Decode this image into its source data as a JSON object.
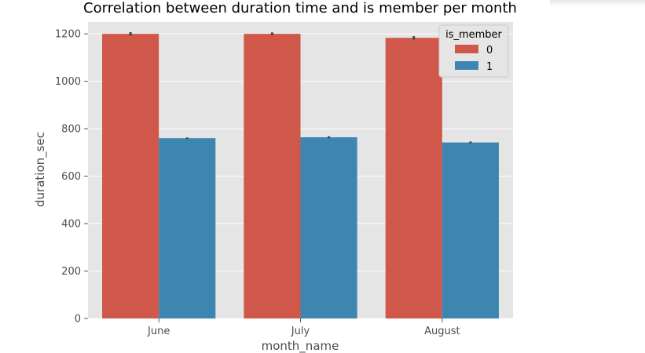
{
  "chart_data": {
    "type": "bar",
    "title": "Correlation between duration time and is member per month",
    "xlabel": "month_name",
    "ylabel": "duration_sec",
    "categories": [
      "June",
      "July",
      "August"
    ],
    "ylim": [
      0,
      1250
    ],
    "yticks": [
      0,
      200,
      400,
      600,
      800,
      1000,
      1200
    ],
    "grid": true,
    "legend": {
      "title": "is_member",
      "placement": "top-right"
    },
    "series": [
      {
        "name": "0",
        "color": "#d0584a",
        "values": [
          1200,
          1200,
          1183
        ],
        "errors": [
          7,
          6,
          7
        ]
      },
      {
        "name": "1",
        "color": "#3d86b2",
        "values": [
          760,
          764,
          742
        ],
        "errors": [
          3,
          4,
          4
        ]
      }
    ]
  }
}
